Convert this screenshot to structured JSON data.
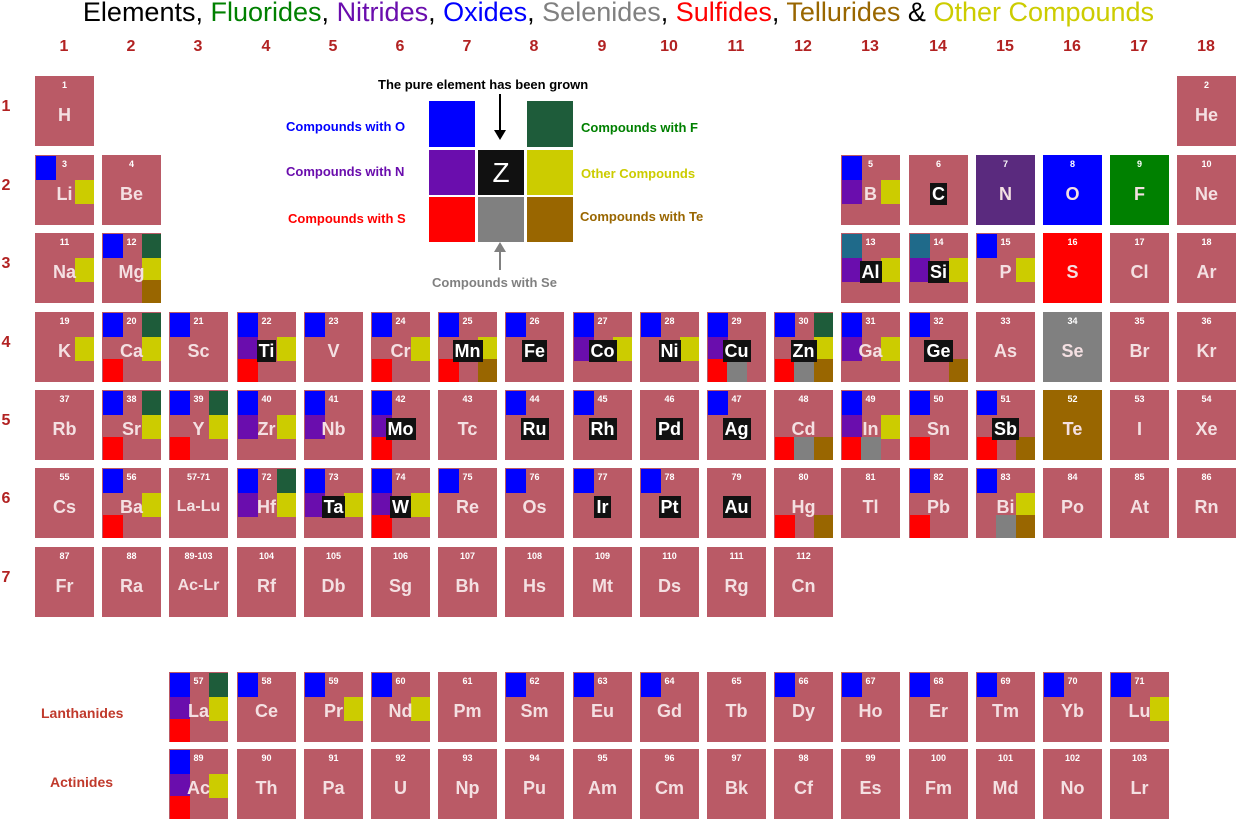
{
  "title_parts": [
    {
      "text": "Elements",
      "color": "#000000"
    },
    {
      "text": ", ",
      "color": "#000000"
    },
    {
      "text": "Fluorides",
      "color": "#008000"
    },
    {
      "text": ", ",
      "color": "#000000"
    },
    {
      "text": "Nitrides",
      "color": "#6a0dad"
    },
    {
      "text": ", ",
      "color": "#000000"
    },
    {
      "text": "Oxides",
      "color": "#0000ff"
    },
    {
      "text": ", ",
      "color": "#000000"
    },
    {
      "text": "Selenides",
      "color": "#808080"
    },
    {
      "text": ", ",
      "color": "#000000"
    },
    {
      "text": "Sulfides",
      "color": "#ff0000"
    },
    {
      "text": ", ",
      "color": "#000000"
    },
    {
      "text": "Tellurides",
      "color": "#996600"
    },
    {
      "text": " & ",
      "color": "#000000"
    },
    {
      "text": "Other Compounds",
      "color": "#cccc00"
    }
  ],
  "colors": {
    "O": "#0000ff",
    "F": "#1e5c3a",
    "F_bright": "#008000",
    "N": "#6a0dad",
    "S": "#ff0000",
    "Se": "#808080",
    "Te": "#996600",
    "other": "#cccc00",
    "teal": "#1f6a8a",
    "pure_bg": "#111111",
    "cell": "#ba5a66",
    "N_fill": "#5a2a7e"
  },
  "groups": [
    "1",
    "2",
    "3",
    "4",
    "5",
    "6",
    "7",
    "8",
    "9",
    "10",
    "11",
    "12",
    "13",
    "14",
    "15",
    "16",
    "17",
    "18"
  ],
  "periods": [
    "1",
    "2",
    "3",
    "4",
    "5",
    "6",
    "7"
  ],
  "section_labels": {
    "lanthanides": "Lanthanides",
    "actinides": "Actinides"
  },
  "legend": {
    "header": "The pure element has been grown",
    "center_symbol": "Z",
    "oxides": "Compounds with O",
    "nitrides": "Compounds with N",
    "sulfides": "Compounds with S",
    "fluorides": "Compounds with F",
    "other": "Other Compounds",
    "tellurides": "Compounds with Te",
    "selenides": "Compounds with Se"
  },
  "elements": [
    {
      "n": "1",
      "s": "H",
      "g": 1,
      "p": 1
    },
    {
      "n": "2",
      "s": "He",
      "g": 18,
      "p": 1
    },
    {
      "n": "3",
      "s": "Li",
      "g": 1,
      "p": 2,
      "c": [
        "O",
        "X"
      ]
    },
    {
      "n": "4",
      "s": "Be",
      "g": 2,
      "p": 2
    },
    {
      "n": "5",
      "s": "B",
      "g": 13,
      "p": 2,
      "c": [
        "O",
        "N",
        "X"
      ]
    },
    {
      "n": "6",
      "s": "C",
      "g": 14,
      "p": 2,
      "pure": true
    },
    {
      "n": "7",
      "s": "N",
      "g": 15,
      "p": 2,
      "fill": "N_fill"
    },
    {
      "n": "8",
      "s": "O",
      "g": 16,
      "p": 2,
      "fill": "O"
    },
    {
      "n": "9",
      "s": "F",
      "g": 17,
      "p": 2,
      "fill": "F_bright"
    },
    {
      "n": "10",
      "s": "Ne",
      "g": 18,
      "p": 2
    },
    {
      "n": "11",
      "s": "Na",
      "g": 1,
      "p": 3,
      "c": [
        "X"
      ]
    },
    {
      "n": "12",
      "s": "Mg",
      "g": 2,
      "p": 3,
      "c": [
        "O",
        "F",
        "X",
        "T"
      ]
    },
    {
      "n": "13",
      "s": "Al",
      "g": 13,
      "p": 3,
      "pure": true,
      "c": [
        "TL",
        "N",
        "X"
      ]
    },
    {
      "n": "14",
      "s": "Si",
      "g": 14,
      "p": 3,
      "pure": true,
      "c": [
        "TL",
        "N",
        "X"
      ]
    },
    {
      "n": "15",
      "s": "P",
      "g": 15,
      "p": 3,
      "c": [
        "O",
        "X"
      ]
    },
    {
      "n": "16",
      "s": "S",
      "g": 16,
      "p": 3,
      "fill": "S"
    },
    {
      "n": "17",
      "s": "Cl",
      "g": 17,
      "p": 3
    },
    {
      "n": "18",
      "s": "Ar",
      "g": 18,
      "p": 3
    },
    {
      "n": "19",
      "s": "K",
      "g": 1,
      "p": 4,
      "c": [
        "X"
      ]
    },
    {
      "n": "20",
      "s": "Ca",
      "g": 2,
      "p": 4,
      "c": [
        "O",
        "F",
        "X",
        "S"
      ]
    },
    {
      "n": "21",
      "s": "Sc",
      "g": 3,
      "p": 4,
      "c": [
        "O"
      ]
    },
    {
      "n": "22",
      "s": "Ti",
      "g": 4,
      "p": 4,
      "pure": true,
      "c": [
        "O",
        "N",
        "X",
        "S"
      ]
    },
    {
      "n": "23",
      "s": "V",
      "g": 5,
      "p": 4,
      "c": [
        "O"
      ]
    },
    {
      "n": "24",
      "s": "Cr",
      "g": 6,
      "p": 4,
      "c": [
        "O",
        "X",
        "S"
      ]
    },
    {
      "n": "25",
      "s": "Mn",
      "g": 7,
      "p": 4,
      "pure": true,
      "c": [
        "O",
        "X",
        "S",
        "T"
      ]
    },
    {
      "n": "26",
      "s": "Fe",
      "g": 8,
      "p": 4,
      "pure": true,
      "c": [
        "O"
      ]
    },
    {
      "n": "27",
      "s": "Co",
      "g": 9,
      "p": 4,
      "pure": true,
      "c": [
        "O",
        "N",
        "X"
      ]
    },
    {
      "n": "28",
      "s": "Ni",
      "g": 10,
      "p": 4,
      "pure": true,
      "c": [
        "O",
        "X"
      ]
    },
    {
      "n": "29",
      "s": "Cu",
      "g": 11,
      "p": 4,
      "pure": true,
      "c": [
        "O",
        "N",
        "S",
        "E"
      ]
    },
    {
      "n": "30",
      "s": "Zn",
      "g": 12,
      "p": 4,
      "pure": true,
      "c": [
        "O",
        "F",
        "X",
        "S",
        "E",
        "T"
      ]
    },
    {
      "n": "31",
      "s": "Ga",
      "g": 13,
      "p": 4,
      "c": [
        "O",
        "N",
        "X"
      ]
    },
    {
      "n": "32",
      "s": "Ge",
      "g": 14,
      "p": 4,
      "pure": true,
      "c": [
        "O",
        "T"
      ]
    },
    {
      "n": "33",
      "s": "As",
      "g": 15,
      "p": 4
    },
    {
      "n": "34",
      "s": "Se",
      "g": 16,
      "p": 4,
      "fill": "Se"
    },
    {
      "n": "35",
      "s": "Br",
      "g": 17,
      "p": 4
    },
    {
      "n": "36",
      "s": "Kr",
      "g": 18,
      "p": 4
    },
    {
      "n": "37",
      "s": "Rb",
      "g": 1,
      "p": 5
    },
    {
      "n": "38",
      "s": "Sr",
      "g": 2,
      "p": 5,
      "c": [
        "O",
        "F",
        "X",
        "S"
      ]
    },
    {
      "n": "39",
      "s": "Y",
      "g": 3,
      "p": 5,
      "c": [
        "O",
        "F",
        "X",
        "S"
      ]
    },
    {
      "n": "40",
      "s": "Zr",
      "g": 4,
      "p": 5,
      "c": [
        "O",
        "N",
        "X"
      ]
    },
    {
      "n": "41",
      "s": "Nb",
      "g": 5,
      "p": 5,
      "c": [
        "O",
        "N"
      ]
    },
    {
      "n": "42",
      "s": "Mo",
      "g": 6,
      "p": 5,
      "pure": true,
      "c": [
        "O",
        "N",
        "S"
      ]
    },
    {
      "n": "43",
      "s": "Tc",
      "g": 7,
      "p": 5
    },
    {
      "n": "44",
      "s": "Ru",
      "g": 8,
      "p": 5,
      "pure": true,
      "c": [
        "O"
      ]
    },
    {
      "n": "45",
      "s": "Rh",
      "g": 9,
      "p": 5,
      "pure": true,
      "c": [
        "O"
      ]
    },
    {
      "n": "46",
      "s": "Pd",
      "g": 10,
      "p": 5,
      "pure": true
    },
    {
      "n": "47",
      "s": "Ag",
      "g": 11,
      "p": 5,
      "pure": true,
      "c": [
        "O"
      ]
    },
    {
      "n": "48",
      "s": "Cd",
      "g": 12,
      "p": 5,
      "c": [
        "S",
        "E",
        "T"
      ]
    },
    {
      "n": "49",
      "s": "In",
      "g": 13,
      "p": 5,
      "c": [
        "O",
        "N",
        "X",
        "S",
        "E"
      ]
    },
    {
      "n": "50",
      "s": "Sn",
      "g": 14,
      "p": 5,
      "c": [
        "O",
        "S"
      ]
    },
    {
      "n": "51",
      "s": "Sb",
      "g": 15,
      "p": 5,
      "pure": true,
      "c": [
        "O",
        "S",
        "T"
      ]
    },
    {
      "n": "52",
      "s": "Te",
      "g": 16,
      "p": 5,
      "fill": "Te"
    },
    {
      "n": "53",
      "s": "I",
      "g": 17,
      "p": 5
    },
    {
      "n": "54",
      "s": "Xe",
      "g": 18,
      "p": 5
    },
    {
      "n": "55",
      "s": "Cs",
      "g": 1,
      "p": 6
    },
    {
      "n": "56",
      "s": "Ba",
      "g": 2,
      "p": 6,
      "c": [
        "O",
        "X",
        "S"
      ]
    },
    {
      "n": "57-71",
      "s": "La-Lu",
      "g": 3,
      "p": 6
    },
    {
      "n": "72",
      "s": "Hf",
      "g": 4,
      "p": 6,
      "c": [
        "O",
        "F",
        "N",
        "X"
      ]
    },
    {
      "n": "73",
      "s": "Ta",
      "g": 5,
      "p": 6,
      "pure": true,
      "c": [
        "O",
        "N",
        "X"
      ]
    },
    {
      "n": "74",
      "s": "W",
      "g": 6,
      "p": 6,
      "pure": true,
      "c": [
        "O",
        "N",
        "X",
        "S"
      ]
    },
    {
      "n": "75",
      "s": "Re",
      "g": 7,
      "p": 6,
      "c": [
        "O"
      ]
    },
    {
      "n": "76",
      "s": "Os",
      "g": 8,
      "p": 6,
      "c": [
        "O"
      ]
    },
    {
      "n": "77",
      "s": "Ir",
      "g": 9,
      "p": 6,
      "pure": true,
      "c": [
        "O"
      ]
    },
    {
      "n": "78",
      "s": "Pt",
      "g": 10,
      "p": 6,
      "pure": true,
      "c": [
        "O"
      ]
    },
    {
      "n": "79",
      "s": "Au",
      "g": 11,
      "p": 6,
      "pure": true
    },
    {
      "n": "80",
      "s": "Hg",
      "g": 12,
      "p": 6,
      "c": [
        "S",
        "T"
      ]
    },
    {
      "n": "81",
      "s": "Tl",
      "g": 13,
      "p": 6
    },
    {
      "n": "82",
      "s": "Pb",
      "g": 14,
      "p": 6,
      "c": [
        "O",
        "S"
      ]
    },
    {
      "n": "83",
      "s": "Bi",
      "g": 15,
      "p": 6,
      "c": [
        "O",
        "X",
        "E",
        "T"
      ]
    },
    {
      "n": "84",
      "s": "Po",
      "g": 16,
      "p": 6
    },
    {
      "n": "85",
      "s": "At",
      "g": 17,
      "p": 6
    },
    {
      "n": "86",
      "s": "Rn",
      "g": 18,
      "p": 6
    },
    {
      "n": "87",
      "s": "Fr",
      "g": 1,
      "p": 7
    },
    {
      "n": "88",
      "s": "Ra",
      "g": 2,
      "p": 7
    },
    {
      "n": "89-103",
      "s": "Ac-Lr",
      "g": 3,
      "p": 7
    },
    {
      "n": "104",
      "s": "Rf",
      "g": 4,
      "p": 7
    },
    {
      "n": "105",
      "s": "Db",
      "g": 5,
      "p": 7
    },
    {
      "n": "106",
      "s": "Sg",
      "g": 6,
      "p": 7
    },
    {
      "n": "107",
      "s": "Bh",
      "g": 7,
      "p": 7
    },
    {
      "n": "108",
      "s": "Hs",
      "g": 8,
      "p": 7
    },
    {
      "n": "109",
      "s": "Mt",
      "g": 9,
      "p": 7
    },
    {
      "n": "110",
      "s": "Ds",
      "g": 10,
      "p": 7
    },
    {
      "n": "111",
      "s": "Rg",
      "g": 11,
      "p": 7
    },
    {
      "n": "112",
      "s": "Cn",
      "g": 12,
      "p": 7
    },
    {
      "n": "57",
      "s": "La",
      "g": 3,
      "p": 9,
      "c": [
        "O",
        "F",
        "N",
        "X",
        "S"
      ]
    },
    {
      "n": "58",
      "s": "Ce",
      "g": 4,
      "p": 9,
      "c": [
        "O"
      ]
    },
    {
      "n": "59",
      "s": "Pr",
      "g": 5,
      "p": 9,
      "c": [
        "O",
        "X"
      ]
    },
    {
      "n": "60",
      "s": "Nd",
      "g": 6,
      "p": 9,
      "c": [
        "O",
        "X"
      ]
    },
    {
      "n": "61",
      "s": "Pm",
      "g": 7,
      "p": 9
    },
    {
      "n": "62",
      "s": "Sm",
      "g": 8,
      "p": 9,
      "c": [
        "O"
      ]
    },
    {
      "n": "63",
      "s": "Eu",
      "g": 9,
      "p": 9,
      "c": [
        "O"
      ]
    },
    {
      "n": "64",
      "s": "Gd",
      "g": 10,
      "p": 9,
      "c": [
        "O"
      ]
    },
    {
      "n": "65",
      "s": "Tb",
      "g": 11,
      "p": 9
    },
    {
      "n": "66",
      "s": "Dy",
      "g": 12,
      "p": 9,
      "c": [
        "O"
      ]
    },
    {
      "n": "67",
      "s": "Ho",
      "g": 13,
      "p": 9,
      "c": [
        "O"
      ]
    },
    {
      "n": "68",
      "s": "Er",
      "g": 14,
      "p": 9,
      "c": [
        "O"
      ]
    },
    {
      "n": "69",
      "s": "Tm",
      "g": 15,
      "p": 9,
      "c": [
        "O"
      ]
    },
    {
      "n": "70",
      "s": "Yb",
      "g": 16,
      "p": 9,
      "c": [
        "O"
      ]
    },
    {
      "n": "71",
      "s": "Lu",
      "g": 17,
      "p": 9,
      "c": [
        "O",
        "X"
      ]
    },
    {
      "n": "89",
      "s": "Ac",
      "g": 3,
      "p": 10,
      "c": [
        "O",
        "N",
        "X",
        "S"
      ]
    },
    {
      "n": "90",
      "s": "Th",
      "g": 4,
      "p": 10
    },
    {
      "n": "91",
      "s": "Pa",
      "g": 5,
      "p": 10
    },
    {
      "n": "92",
      "s": "U",
      "g": 6,
      "p": 10
    },
    {
      "n": "93",
      "s": "Np",
      "g": 7,
      "p": 10
    },
    {
      "n": "94",
      "s": "Pu",
      "g": 8,
      "p": 10
    },
    {
      "n": "95",
      "s": "Am",
      "g": 9,
      "p": 10
    },
    {
      "n": "96",
      "s": "Cm",
      "g": 10,
      "p": 10
    },
    {
      "n": "97",
      "s": "Bk",
      "g": 11,
      "p": 10
    },
    {
      "n": "98",
      "s": "Cf",
      "g": 12,
      "p": 10
    },
    {
      "n": "99",
      "s": "Es",
      "g": 13,
      "p": 10
    },
    {
      "n": "100",
      "s": "Fm",
      "g": 14,
      "p": 10
    },
    {
      "n": "101",
      "s": "Md",
      "g": 15,
      "p": 10
    },
    {
      "n": "102",
      "s": "No",
      "g": 16,
      "p": 10
    },
    {
      "n": "103",
      "s": "Lr",
      "g": 17,
      "p": 10
    }
  ]
}
